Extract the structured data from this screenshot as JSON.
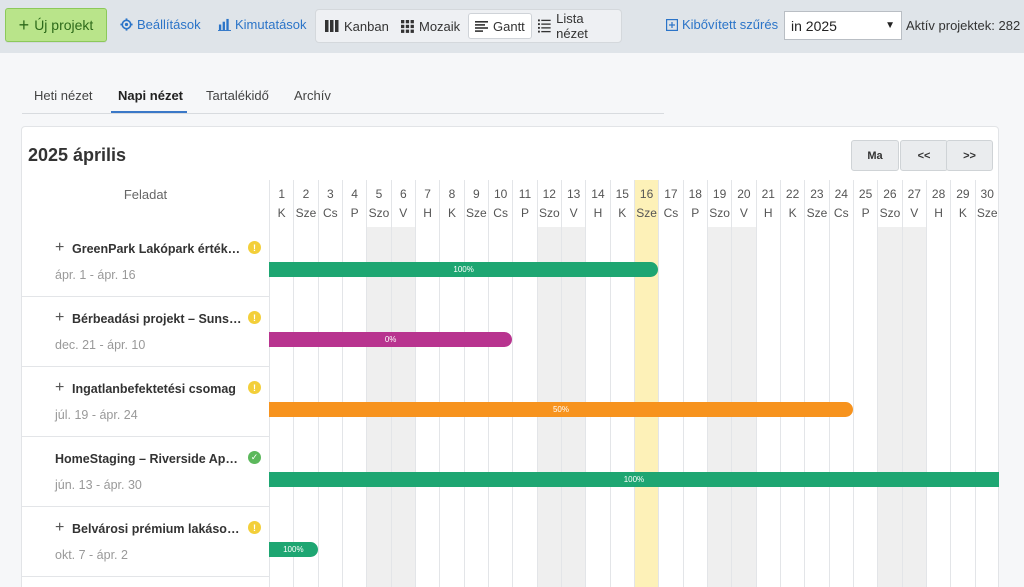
{
  "toolbar": {
    "new_project": "Új projekt",
    "settings": "Beállítások",
    "reports": "Kimutatások",
    "views": [
      {
        "label": "Kanban",
        "icon": "kanban-icon",
        "active": false
      },
      {
        "label": "Mozaik",
        "icon": "grid-icon",
        "active": false
      },
      {
        "label": "Gantt",
        "icon": "gantt-icon",
        "active": true
      },
      {
        "label": "Lista nézet",
        "icon": "list-icon",
        "active": false
      }
    ],
    "advanced_filter": "Kibővített szűrés",
    "year_select": "in 2025",
    "active_projects": "Aktív projektek: 282"
  },
  "tabs": [
    {
      "label": "Heti nézet",
      "active": false
    },
    {
      "label": "Napi nézet",
      "active": true
    },
    {
      "label": "Tartalékidő",
      "active": false
    },
    {
      "label": "Archív",
      "active": false
    }
  ],
  "gantt": {
    "month_title": "2025 április",
    "nav": {
      "today": "Ma",
      "prev": "<<",
      "next": ">>"
    },
    "task_header": "Feladat",
    "today_day": 16,
    "days": [
      {
        "n": "1",
        "d": "K",
        "we": false
      },
      {
        "n": "2",
        "d": "Sze",
        "we": false
      },
      {
        "n": "3",
        "d": "Cs",
        "we": false
      },
      {
        "n": "4",
        "d": "P",
        "we": false
      },
      {
        "n": "5",
        "d": "Szo",
        "we": true
      },
      {
        "n": "6",
        "d": "V",
        "we": true
      },
      {
        "n": "7",
        "d": "H",
        "we": false
      },
      {
        "n": "8",
        "d": "K",
        "we": false
      },
      {
        "n": "9",
        "d": "Sze",
        "we": false
      },
      {
        "n": "10",
        "d": "Cs",
        "we": false
      },
      {
        "n": "11",
        "d": "P",
        "we": false
      },
      {
        "n": "12",
        "d": "Szo",
        "we": true
      },
      {
        "n": "13",
        "d": "V",
        "we": true
      },
      {
        "n": "14",
        "d": "H",
        "we": false
      },
      {
        "n": "15",
        "d": "K",
        "we": false
      },
      {
        "n": "16",
        "d": "Sze",
        "we": false
      },
      {
        "n": "17",
        "d": "Cs",
        "we": false
      },
      {
        "n": "18",
        "d": "P",
        "we": false
      },
      {
        "n": "19",
        "d": "Szo",
        "we": true
      },
      {
        "n": "20",
        "d": "V",
        "we": true
      },
      {
        "n": "21",
        "d": "H",
        "we": false
      },
      {
        "n": "22",
        "d": "K",
        "we": false
      },
      {
        "n": "23",
        "d": "Sze",
        "we": false
      },
      {
        "n": "24",
        "d": "Cs",
        "we": false
      },
      {
        "n": "25",
        "d": "P",
        "we": false
      },
      {
        "n": "26",
        "d": "Szo",
        "we": true
      },
      {
        "n": "27",
        "d": "V",
        "we": true
      },
      {
        "n": "28",
        "d": "H",
        "we": false
      },
      {
        "n": "29",
        "d": "K",
        "we": false
      },
      {
        "n": "30",
        "d": "Sze",
        "we": false
      }
    ],
    "tasks": [
      {
        "name": "GreenPark Lakópark értékesítése",
        "dates": "ápr. 1 - ápr. 16",
        "expandable": true,
        "status": "warn",
        "end_day": 16,
        "progress": "100%",
        "color": "#1ea672"
      },
      {
        "name": "Bérbeadási projekt – Sunshine",
        "dates": "dec. 21 - ápr. 10",
        "expandable": true,
        "status": "warn",
        "end_day": 10,
        "progress": "0%",
        "color": "#b8348f"
      },
      {
        "name": "Ingatlanbefektetési csomag",
        "dates": "júl. 19 - ápr. 24",
        "expandable": true,
        "status": "warn",
        "end_day": 24,
        "progress": "50%",
        "color": "#f7931e"
      },
      {
        "name": "HomeStaging – Riverside Apartman",
        "dates": "jún. 13 - ápr. 30",
        "expandable": false,
        "status": "ok",
        "end_day": 30,
        "progress": "100%",
        "color": "#1ea672"
      },
      {
        "name": "Belvárosi prémium lakások k",
        "dates": "okt. 7 - ápr. 2",
        "expandable": true,
        "status": "warn",
        "end_day": 2,
        "progress": "100%",
        "color": "#1ea672"
      }
    ]
  }
}
